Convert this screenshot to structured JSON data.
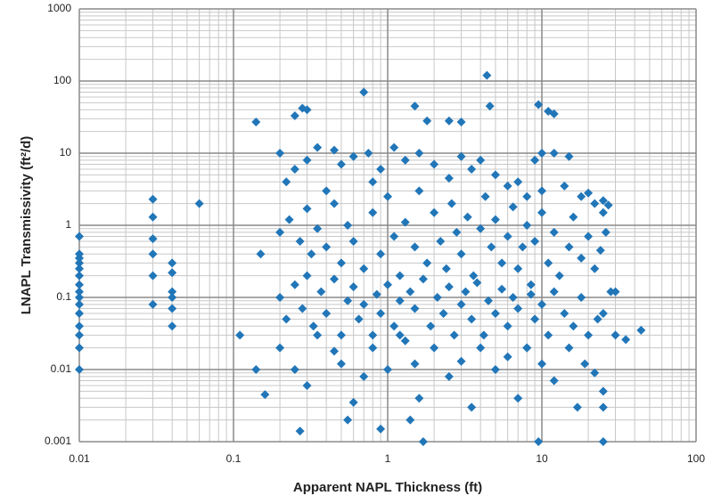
{
  "chart_data": {
    "type": "scatter",
    "xlabel": "Apparent NAPL Thickness (ft)",
    "ylabel": "LNAPL Transmissivity (ft²/d)",
    "xscale": "log",
    "yscale": "log",
    "grid": true,
    "minor_grid": true,
    "color": "#2176b8",
    "xlim": [
      0.01,
      100
    ],
    "ylim": [
      0.001,
      1000
    ],
    "xticks": [
      0.01,
      0.1,
      1,
      10,
      100
    ],
    "yticks": [
      0.001,
      0.01,
      0.1,
      1,
      10,
      100,
      1000
    ],
    "x": [
      0.01,
      0.01,
      0.01,
      0.01,
      0.01,
      0.01,
      0.01,
      0.01,
      0.01,
      0.01,
      0.01,
      0.01,
      0.01,
      0.01,
      0.01,
      0.03,
      0.03,
      0.03,
      0.03,
      0.03,
      0.03,
      0.04,
      0.04,
      0.04,
      0.04,
      0.04,
      0.04,
      0.06,
      0.11,
      0.14,
      0.14,
      0.16,
      0.15,
      4.4,
      0.7,
      9.5,
      4.6,
      1.5,
      0.3,
      0.28,
      0.25,
      11,
      12,
      2.5,
      3,
      1.8,
      10,
      25,
      9.5,
      1.7,
      0.9,
      0.27,
      0.55,
      1.4,
      44,
      35,
      30,
      25,
      27,
      25,
      0.2,
      0.22,
      0.25,
      0.3,
      0.35,
      0.4,
      0.45,
      0.5,
      0.6,
      0.75,
      0.8,
      0.9,
      1.1,
      1.3,
      1.6,
      2,
      2.5,
      3,
      3.5,
      4,
      5,
      6,
      7,
      8,
      9,
      10,
      12,
      14,
      15,
      18,
      20,
      22,
      25,
      0.2,
      0.23,
      0.27,
      0.3,
      0.32,
      0.35,
      0.4,
      0.45,
      0.5,
      0.55,
      0.6,
      0.7,
      0.8,
      0.9,
      1,
      1.1,
      1.2,
      1.3,
      1.5,
      1.6,
      1.8,
      2,
      2.2,
      2.4,
      2.6,
      2.8,
      3,
      3.3,
      3.6,
      4,
      4.3,
      4.7,
      5,
      5.5,
      6,
      6.5,
      7,
      7.5,
      8,
      8.5,
      9,
      10,
      11,
      12,
      13,
      15,
      16,
      18,
      20,
      22,
      24,
      26,
      28,
      0.2,
      0.22,
      0.25,
      0.28,
      0.3,
      0.33,
      0.37,
      0.4,
      0.45,
      0.5,
      0.55,
      0.6,
      0.65,
      0.7,
      0.8,
      0.85,
      0.9,
      1,
      1.1,
      1.2,
      1.3,
      1.4,
      1.5,
      1.7,
      1.9,
      2.1,
      2.3,
      2.5,
      2.7,
      3,
      3.2,
      3.5,
      3.8,
      4.2,
      4.5,
      5,
      5.5,
      6,
      6.5,
      7,
      8,
      8.5,
      9,
      10,
      11,
      12,
      14,
      16,
      18,
      20,
      23,
      25,
      30,
      0.2,
      0.25,
      0.3,
      0.35,
      0.45,
      0.5,
      0.6,
      0.7,
      0.8,
      1,
      1.2,
      1.5,
      1.6,
      2,
      2.5,
      3,
      3.5,
      4,
      5,
      6,
      7,
      8,
      10,
      12,
      15,
      17,
      19,
      22,
      25
    ],
    "y": [
      0.7,
      0.4,
      0.35,
      0.3,
      0.25,
      0.2,
      0.15,
      0.12,
      0.1,
      0.08,
      0.06,
      0.04,
      0.03,
      0.02,
      0.01,
      2.3,
      1.3,
      0.65,
      0.4,
      0.2,
      0.08,
      0.3,
      0.22,
      0.12,
      0.1,
      0.07,
      0.04,
      2,
      0.03,
      27,
      0.01,
      0.0045,
      0.4,
      120,
      70,
      47,
      45,
      45,
      40,
      42,
      33,
      38,
      35,
      28,
      27,
      28,
      10,
      0.001,
      0.001,
      0.001,
      0.0015,
      0.0014,
      0.002,
      0.002,
      0.035,
      0.026,
      0.03,
      0.003,
      1.9,
      1.5,
      10,
      4,
      6,
      8,
      12,
      3,
      11,
      7,
      9,
      10,
      4,
      6,
      12,
      8,
      10,
      7,
      4.5,
      9,
      6,
      8,
      5,
      3.5,
      4,
      2.5,
      8,
      3,
      10,
      3.5,
      9,
      2.5,
      2.8,
      2,
      2.2,
      0.8,
      1.2,
      0.6,
      1.7,
      0.4,
      0.9,
      0.5,
      2,
      0.3,
      1,
      0.6,
      0.25,
      1.5,
      0.4,
      2.5,
      0.7,
      0.2,
      1.1,
      0.5,
      3,
      0.3,
      1.5,
      0.6,
      0.25,
      2,
      0.8,
      0.4,
      1.3,
      0.2,
      0.9,
      2.5,
      0.5,
      1.2,
      0.3,
      0.7,
      1.8,
      0.25,
      0.5,
      1,
      0.15,
      0.6,
      1.5,
      0.3,
      0.8,
      0.2,
      0.5,
      1.3,
      0.35,
      0.7,
      0.25,
      0.45,
      0.8,
      0.12,
      0.1,
      0.05,
      0.15,
      0.07,
      0.2,
      0.04,
      0.12,
      0.06,
      0.18,
      0.03,
      0.09,
      0.14,
      0.05,
      0.08,
      0.03,
      0.11,
      0.06,
      0.15,
      0.04,
      0.09,
      0.025,
      0.12,
      0.07,
      0.18,
      0.04,
      0.1,
      0.06,
      0.14,
      0.03,
      0.08,
      0.12,
      0.05,
      0.16,
      0.03,
      0.09,
      0.06,
      0.13,
      0.04,
      0.1,
      0.07,
      0.02,
      0.11,
      0.05,
      0.08,
      0.03,
      0.12,
      0.06,
      0.04,
      0.1,
      0.03,
      0.05,
      0.06,
      0.12,
      0.02,
      0.01,
      0.006,
      0.03,
      0.018,
      0.012,
      0.0035,
      0.008,
      0.02,
      0.01,
      0.03,
      0.012,
      0.004,
      0.02,
      0.008,
      0.013,
      0.003,
      0.02,
      0.01,
      0.015,
      0.004,
      0.02,
      0.012,
      0.007,
      0.02,
      0.003,
      0.012,
      0.009,
      0.005
    ]
  }
}
